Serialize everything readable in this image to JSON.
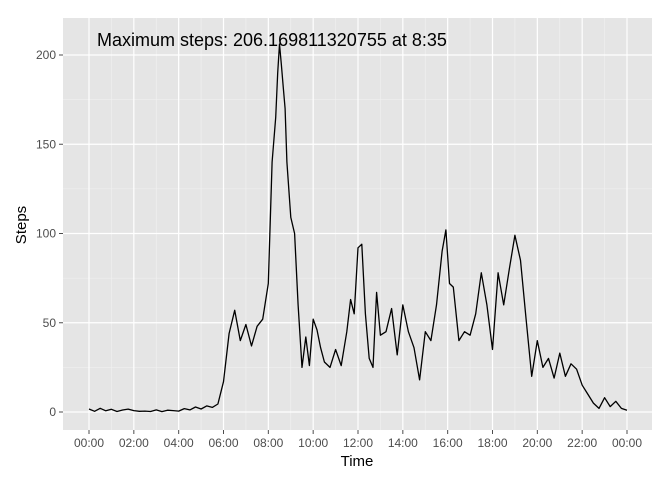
{
  "chart_data": {
    "type": "line",
    "title": "",
    "xlabel": "Time",
    "ylabel": "Steps",
    "annotation": "Maximum steps: 206.169811320755 at 8:35",
    "xlim": [
      0,
      24
    ],
    "ylim": [
      0,
      215
    ],
    "x_ticks": [
      0,
      2,
      4,
      6,
      8,
      10,
      12,
      14,
      16,
      18,
      20,
      22,
      24
    ],
    "x_tick_labels": [
      "00:00",
      "02:00",
      "04:00",
      "06:00",
      "08:00",
      "10:00",
      "12:00",
      "14:00",
      "16:00",
      "18:00",
      "20:00",
      "22:00",
      "00:00"
    ],
    "y_ticks": [
      0,
      50,
      100,
      150,
      200
    ],
    "y_tick_labels": [
      "0",
      "50",
      "100",
      "150",
      "200"
    ],
    "grid": true,
    "series": [
      {
        "line_color": "#000000",
        "x": [
          0,
          0.25,
          0.5,
          0.75,
          1,
          1.25,
          1.5,
          1.75,
          2,
          2.25,
          2.5,
          2.75,
          3,
          3.25,
          3.5,
          3.75,
          4,
          4.25,
          4.5,
          4.75,
          5,
          5.25,
          5.5,
          5.75,
          6,
          6.25,
          6.5,
          6.75,
          7,
          7.25,
          7.5,
          7.75,
          8,
          8.17,
          8.33,
          8.42,
          8.5,
          8.58,
          8.67,
          8.75,
          8.83,
          9,
          9.17,
          9.33,
          9.5,
          9.67,
          9.83,
          10,
          10.17,
          10.33,
          10.5,
          10.75,
          11,
          11.25,
          11.5,
          11.67,
          11.83,
          12,
          12.17,
          12.33,
          12.5,
          12.67,
          12.83,
          13,
          13.25,
          13.5,
          13.75,
          14,
          14.25,
          14.5,
          14.75,
          15,
          15.25,
          15.5,
          15.75,
          15.92,
          16.08,
          16.25,
          16.5,
          16.75,
          17,
          17.25,
          17.5,
          17.75,
          18,
          18.25,
          18.5,
          18.75,
          19,
          19.25,
          19.5,
          19.75,
          20,
          20.25,
          20.5,
          20.75,
          21,
          21.25,
          21.5,
          21.75,
          22,
          22.25,
          22.5,
          22.75,
          23,
          23.25,
          23.5,
          23.75,
          24
        ],
        "y": [
          1.7,
          0.4,
          2.1,
          0.7,
          1.5,
          0.3,
          1.1,
          1.6,
          0.8,
          0.4,
          0.5,
          0.3,
          1.2,
          0.2,
          1,
          0.8,
          0.5,
          1.9,
          1.2,
          2.8,
          1.7,
          3.4,
          2.6,
          4.5,
          17,
          44,
          57,
          40,
          49,
          37,
          48,
          52,
          72,
          140,
          165,
          190,
          206.17,
          195,
          181,
          170,
          140,
          109,
          100,
          60,
          25,
          42,
          26,
          52,
          46,
          36,
          28,
          25,
          35,
          26,
          45,
          63,
          55,
          92,
          94,
          55,
          30,
          25,
          67,
          43,
          45,
          58,
          32,
          60,
          45,
          36,
          18,
          45,
          40,
          60,
          90,
          102,
          72,
          70,
          40,
          45,
          43,
          55,
          78,
          60,
          35,
          78,
          60,
          80,
          99,
          85,
          52,
          20,
          40,
          25,
          30,
          19,
          33,
          20,
          27,
          24,
          15,
          10,
          5,
          2,
          8,
          3,
          6,
          2,
          1
        ]
      }
    ]
  }
}
